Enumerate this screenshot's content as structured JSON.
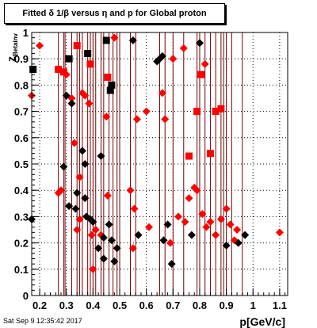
{
  "title": "Fitted δ 1/β versus η and p for Global proton",
  "timestamp": "Sat Sep  9 12:35:42 2017",
  "colors": {
    "red": "#ff0000",
    "black": "#000000",
    "grid": "#7a0000"
  },
  "chart_data": {
    "type": "scatter",
    "title": "Fitted δ 1/β versus η and p for Global proton",
    "xlabel": "p[GeV/c]",
    "ylabel": "z_Betainv",
    "xlim": [
      0.17,
      1.13
    ],
    "ylim": [
      0,
      1
    ],
    "grid": true,
    "xticks": [
      "0.2",
      "0.3",
      "0.4",
      "0.5",
      "0.6",
      "0.7",
      "0.8",
      "0.9",
      "1",
      "1.1"
    ],
    "xtick_values": [
      0.2,
      0.3,
      0.4,
      0.5,
      0.6,
      0.7,
      0.8,
      0.9,
      1.0,
      1.1
    ],
    "yticks": [
      "0",
      "0.1",
      "0.2",
      "0.3",
      "0.4",
      "0.5",
      "0.6",
      "0.7",
      "0.8",
      "0.9",
      "1"
    ],
    "ytick_values": [
      0,
      0.1,
      0.2,
      0.3,
      0.4,
      0.5,
      0.6,
      0.7,
      0.8,
      0.9,
      1.0
    ],
    "vlines": [
      0.27,
      0.29,
      0.295,
      0.32,
      0.34,
      0.35,
      0.36,
      0.38,
      0.39,
      0.4,
      0.41,
      0.43,
      0.44,
      0.46,
      0.475,
      0.49,
      0.5,
      0.54,
      0.56,
      0.65,
      0.67,
      0.7,
      0.74,
      0.79,
      0.8,
      0.82,
      0.84,
      0.86,
      0.88,
      0.89,
      0.9,
      0.92,
      0.96
    ],
    "markers": [
      {
        "x": 0.17,
        "y": 0.76,
        "c": "red",
        "s": "d"
      },
      {
        "x": 0.17,
        "y": 0.29,
        "c": "black",
        "s": "d"
      },
      {
        "x": 0.175,
        "y": 0.86,
        "c": "black",
        "s": "s"
      },
      {
        "x": 0.2,
        "y": 0.95,
        "c": "red",
        "s": "d"
      },
      {
        "x": 0.27,
        "y": 0.86,
        "c": "red",
        "s": "s"
      },
      {
        "x": 0.27,
        "y": 0.39,
        "c": "red",
        "s": "d"
      },
      {
        "x": 0.28,
        "y": 0.4,
        "c": "red",
        "s": "d"
      },
      {
        "x": 0.29,
        "y": 0.85,
        "c": "red",
        "s": "s"
      },
      {
        "x": 0.29,
        "y": 0.49,
        "c": "black",
        "s": "d"
      },
      {
        "x": 0.3,
        "y": 0.84,
        "c": "red",
        "s": "d"
      },
      {
        "x": 0.3,
        "y": 0.76,
        "c": "black",
        "s": "d"
      },
      {
        "x": 0.31,
        "y": 0.9,
        "c": "black",
        "s": "s"
      },
      {
        "x": 0.31,
        "y": 0.34,
        "c": "black",
        "s": "d"
      },
      {
        "x": 0.32,
        "y": 0.75,
        "c": "red",
        "s": "d"
      },
      {
        "x": 0.32,
        "y": 0.73,
        "c": "black",
        "s": "d"
      },
      {
        "x": 0.33,
        "y": 0.58,
        "c": "red",
        "s": "d"
      },
      {
        "x": 0.335,
        "y": 0.33,
        "c": "black",
        "s": "d"
      },
      {
        "x": 0.34,
        "y": 0.95,
        "c": "red",
        "s": "s"
      },
      {
        "x": 0.34,
        "y": 0.39,
        "c": "black",
        "s": "d"
      },
      {
        "x": 0.34,
        "y": 0.25,
        "c": "red",
        "s": "d"
      },
      {
        "x": 0.35,
        "y": 0.45,
        "c": "red",
        "s": "d"
      },
      {
        "x": 0.35,
        "y": 0.29,
        "c": "red",
        "s": "d"
      },
      {
        "x": 0.36,
        "y": 0.77,
        "c": "red",
        "s": "d"
      },
      {
        "x": 0.36,
        "y": 0.55,
        "c": "black",
        "s": "d"
      },
      {
        "x": 0.37,
        "y": 0.76,
        "c": "red",
        "s": "d"
      },
      {
        "x": 0.37,
        "y": 0.5,
        "c": "black",
        "s": "d"
      },
      {
        "x": 0.37,
        "y": 0.37,
        "c": "black",
        "s": "d"
      },
      {
        "x": 0.375,
        "y": 0.3,
        "c": "black",
        "s": "d"
      },
      {
        "x": 0.38,
        "y": 0.92,
        "c": "black",
        "s": "s"
      },
      {
        "x": 0.385,
        "y": 0.73,
        "c": "red",
        "s": "d"
      },
      {
        "x": 0.39,
        "y": 0.88,
        "c": "red",
        "s": "s"
      },
      {
        "x": 0.39,
        "y": 0.29,
        "c": "black",
        "s": "d"
      },
      {
        "x": 0.395,
        "y": 0.23,
        "c": "red",
        "s": "d"
      },
      {
        "x": 0.4,
        "y": 0.28,
        "c": "black",
        "s": "d"
      },
      {
        "x": 0.4,
        "y": 0.1,
        "c": "red",
        "s": "d"
      },
      {
        "x": 0.41,
        "y": 0.25,
        "c": "red",
        "s": "d"
      },
      {
        "x": 0.42,
        "y": 0.18,
        "c": "black",
        "s": "d"
      },
      {
        "x": 0.43,
        "y": 0.53,
        "c": "black",
        "s": "d"
      },
      {
        "x": 0.43,
        "y": 0.23,
        "c": "red",
        "s": "d"
      },
      {
        "x": 0.44,
        "y": 0.22,
        "c": "black",
        "s": "d"
      },
      {
        "x": 0.44,
        "y": 0.14,
        "c": "black",
        "s": "d"
      },
      {
        "x": 0.45,
        "y": 0.97,
        "c": "black",
        "s": "s"
      },
      {
        "x": 0.45,
        "y": 0.68,
        "c": "red",
        "s": "d"
      },
      {
        "x": 0.455,
        "y": 0.83,
        "c": "red",
        "s": "s"
      },
      {
        "x": 0.455,
        "y": 0.38,
        "c": "red",
        "s": "d"
      },
      {
        "x": 0.46,
        "y": 0.27,
        "c": "black",
        "s": "d"
      },
      {
        "x": 0.465,
        "y": 0.78,
        "c": "black",
        "s": "s"
      },
      {
        "x": 0.47,
        "y": 0.8,
        "c": "black",
        "s": "s"
      },
      {
        "x": 0.47,
        "y": 0.21,
        "c": "black",
        "s": "d"
      },
      {
        "x": 0.48,
        "y": 0.98,
        "c": "red",
        "s": "d"
      },
      {
        "x": 0.48,
        "y": 0.13,
        "c": "black",
        "s": "d"
      },
      {
        "x": 0.49,
        "y": 0.18,
        "c": "black",
        "s": "d"
      },
      {
        "x": 0.54,
        "y": 0.4,
        "c": "red",
        "s": "d"
      },
      {
        "x": 0.55,
        "y": 0.97,
        "c": "black",
        "s": "d"
      },
      {
        "x": 0.55,
        "y": 0.18,
        "c": "red",
        "s": "d"
      },
      {
        "x": 0.555,
        "y": 0.33,
        "c": "red",
        "s": "d"
      },
      {
        "x": 0.565,
        "y": 0.67,
        "c": "red",
        "s": "d"
      },
      {
        "x": 0.57,
        "y": 0.23,
        "c": "black",
        "s": "d"
      },
      {
        "x": 0.6,
        "y": 0.7,
        "c": "red",
        "s": "d"
      },
      {
        "x": 0.61,
        "y": 0.26,
        "c": "red",
        "s": "d"
      },
      {
        "x": 0.64,
        "y": 0.89,
        "c": "black",
        "s": "d"
      },
      {
        "x": 0.65,
        "y": 0.9,
        "c": "black",
        "s": "d"
      },
      {
        "x": 0.66,
        "y": 0.91,
        "c": "black",
        "s": "d"
      },
      {
        "x": 0.66,
        "y": 0.77,
        "c": "red",
        "s": "d"
      },
      {
        "x": 0.665,
        "y": 0.21,
        "c": "black",
        "s": "d"
      },
      {
        "x": 0.67,
        "y": 0.67,
        "c": "red",
        "s": "d"
      },
      {
        "x": 0.68,
        "y": 0.27,
        "c": "black",
        "s": "d"
      },
      {
        "x": 0.69,
        "y": 0.2,
        "c": "red",
        "s": "d"
      },
      {
        "x": 0.695,
        "y": 0.12,
        "c": "black",
        "s": "d"
      },
      {
        "x": 0.7,
        "y": 0.9,
        "c": "red",
        "s": "d"
      },
      {
        "x": 0.72,
        "y": 0.3,
        "c": "red",
        "s": "d"
      },
      {
        "x": 0.74,
        "y": 0.94,
        "c": "red",
        "s": "d"
      },
      {
        "x": 0.745,
        "y": 0.28,
        "c": "red",
        "s": "d"
      },
      {
        "x": 0.76,
        "y": 0.53,
        "c": "red",
        "s": "s"
      },
      {
        "x": 0.76,
        "y": 0.37,
        "c": "red",
        "s": "d"
      },
      {
        "x": 0.77,
        "y": 0.23,
        "c": "black",
        "s": "d"
      },
      {
        "x": 0.78,
        "y": 0.41,
        "c": "red",
        "s": "d"
      },
      {
        "x": 0.79,
        "y": 0.7,
        "c": "red",
        "s": "s"
      },
      {
        "x": 0.79,
        "y": 0.4,
        "c": "red",
        "s": "d"
      },
      {
        "x": 0.8,
        "y": 0.96,
        "c": "black",
        "s": "d"
      },
      {
        "x": 0.805,
        "y": 0.84,
        "c": "red",
        "s": "s"
      },
      {
        "x": 0.81,
        "y": 0.31,
        "c": "red",
        "s": "d"
      },
      {
        "x": 0.82,
        "y": 0.88,
        "c": "red",
        "s": "d"
      },
      {
        "x": 0.825,
        "y": 0.26,
        "c": "red",
        "s": "d"
      },
      {
        "x": 0.84,
        "y": 0.54,
        "c": "red",
        "s": "s"
      },
      {
        "x": 0.84,
        "y": 0.28,
        "c": "red",
        "s": "d"
      },
      {
        "x": 0.86,
        "y": 0.7,
        "c": "red",
        "s": "s"
      },
      {
        "x": 0.86,
        "y": 0.23,
        "c": "red",
        "s": "d"
      },
      {
        "x": 0.88,
        "y": 0.71,
        "c": "red",
        "s": "s"
      },
      {
        "x": 0.88,
        "y": 0.29,
        "c": "red",
        "s": "d"
      },
      {
        "x": 0.9,
        "y": 0.33,
        "c": "red",
        "s": "d"
      },
      {
        "x": 0.9,
        "y": 0.19,
        "c": "black",
        "s": "d"
      },
      {
        "x": 0.915,
        "y": 0.27,
        "c": "red",
        "s": "d"
      },
      {
        "x": 0.93,
        "y": 0.21,
        "c": "red",
        "s": "d"
      },
      {
        "x": 0.94,
        "y": 0.25,
        "c": "red",
        "s": "d"
      },
      {
        "x": 0.945,
        "y": 0.2,
        "c": "black",
        "s": "d"
      },
      {
        "x": 0.97,
        "y": 0.23,
        "c": "black",
        "s": "d"
      },
      {
        "x": 1.1,
        "y": 0.24,
        "c": "red",
        "s": "d"
      }
    ]
  }
}
